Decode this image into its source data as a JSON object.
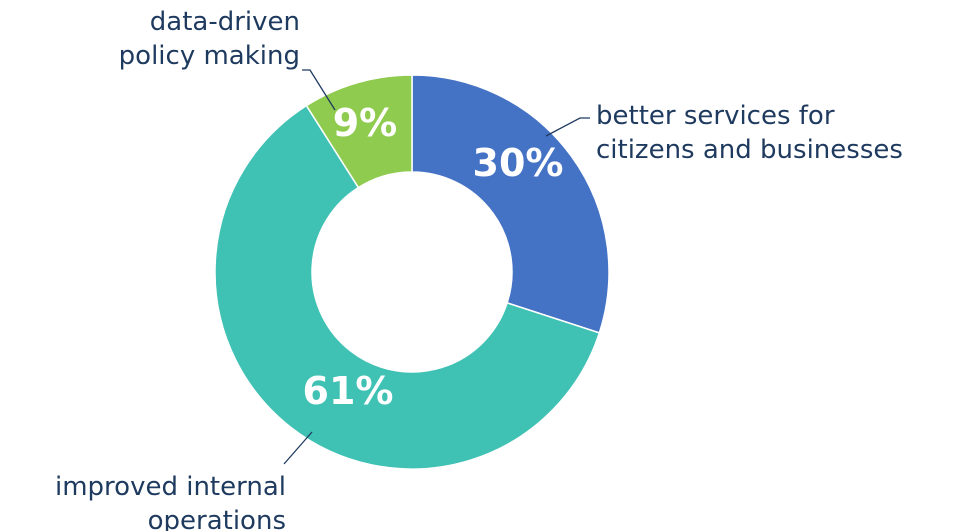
{
  "chart_data": {
    "type": "pie",
    "donut": true,
    "start_at": "top, clockwise",
    "slices": [
      {
        "label_lines": [
          "better services for",
          "citizens and businesses"
        ],
        "value": 30,
        "value_label": "30%",
        "color": "#4472c4"
      },
      {
        "label_lines": [
          "improved internal",
          "operations"
        ],
        "value": 61,
        "value_label": "61%",
        "color": "#3fc1b4"
      },
      {
        "label_lines": [
          "data-driven",
          "policy making"
        ],
        "value": 9,
        "value_label": "9%",
        "color": "#8fcb4f"
      }
    ]
  }
}
